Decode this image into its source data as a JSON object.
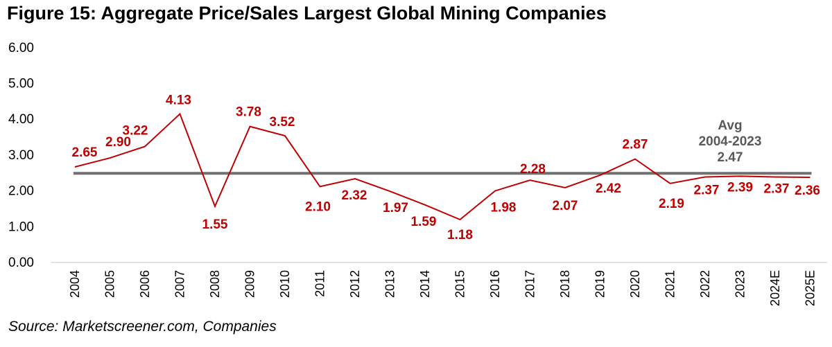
{
  "title": "Figure 15: Aggregate Price/Sales Largest Global Mining Companies",
  "source": "Source: Marketscreener.com, Companies",
  "colors": {
    "series": "#c00000",
    "average": "#707070",
    "average_label": "#595959",
    "axis": "#d9d9d9",
    "text": "#000000"
  },
  "chart_data": {
    "type": "line",
    "title": "Figure 15: Aggregate Price/Sales Largest Global Mining Companies",
    "xlabel": "",
    "ylabel": "",
    "ylim": [
      0,
      6
    ],
    "yticks": [
      "0.00",
      "1.00",
      "2.00",
      "3.00",
      "4.00",
      "5.00",
      "6.00"
    ],
    "grid": false,
    "legend": "none",
    "categories": [
      "2004",
      "2005",
      "2006",
      "2007",
      "2008",
      "2009",
      "2010",
      "2011",
      "2012",
      "2013",
      "2014",
      "2015",
      "2016",
      "2017",
      "2018",
      "2019",
      "2020",
      "2021",
      "2022",
      "2023",
      "2024E",
      "2025E"
    ],
    "series": [
      {
        "name": "Aggregate Price/Sales",
        "values": [
          2.65,
          2.9,
          3.22,
          4.13,
          1.55,
          3.78,
          3.52,
          2.1,
          2.32,
          1.97,
          1.59,
          1.18,
          1.98,
          2.28,
          2.07,
          2.42,
          2.87,
          2.19,
          2.37,
          2.39,
          2.37,
          2.36
        ],
        "labels": [
          "2.65",
          "2.90",
          "3.22",
          "4.13",
          "1.55",
          "3.78",
          "3.52",
          "2.10",
          "2.32",
          "1.97",
          "1.59",
          "1.18",
          "1.98",
          "2.28",
          "2.07",
          "2.42",
          "2.87",
          "2.19",
          "2.37",
          "2.39",
          "2.37",
          "2.36"
        ],
        "label_positions": [
          "above",
          "above",
          "above",
          "above",
          "below",
          "above",
          "above",
          "below",
          "above",
          "below",
          "below",
          "below",
          "below",
          "above",
          "below",
          "below",
          "above",
          "below",
          "below",
          "below",
          "below",
          "below"
        ]
      },
      {
        "name": "Avg 2004-2023",
        "type": "hline",
        "value": 2.47
      }
    ],
    "annotations": [
      {
        "text_lines": [
          "Avg",
          "2004-2023",
          "2.47"
        ],
        "near": "average line, right side"
      }
    ]
  }
}
